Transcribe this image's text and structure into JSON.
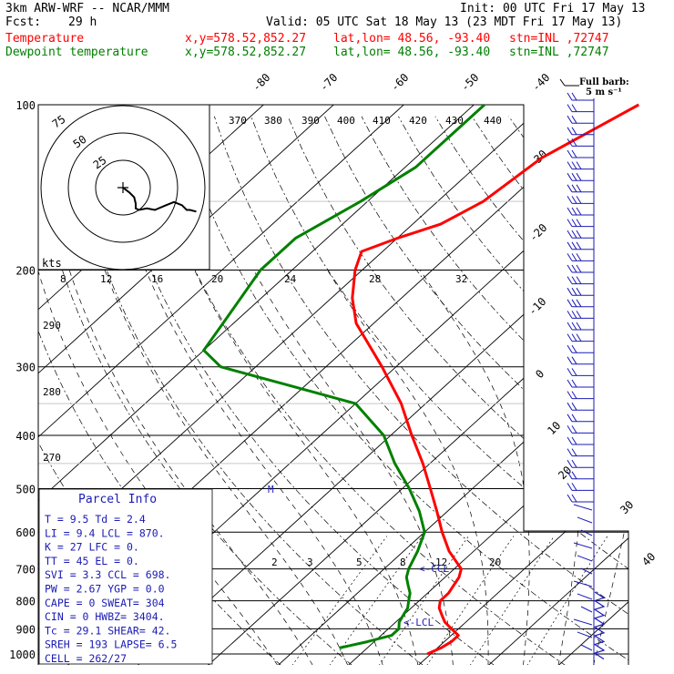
{
  "header": {
    "model": "3km ARW-WRF -- NCAR/MMM",
    "init": "Init: 00 UTC Fri 17 May 13",
    "fcst_label": "Fcst:",
    "fcst_value": "29 h",
    "valid": "Valid: 05 UTC Sat 18 May 13 (23 MDT Fri 17 May 13)",
    "temp_label": "Temperature",
    "dew_label": "Dewpoint temperature",
    "xy": "x,y=578.52,852.27",
    "latlon": "lat,lon= 48.56, -93.40",
    "stn": "stn=INL ,72747"
  },
  "legend": {
    "fullbarb_line1": "Full barb:",
    "fullbarb_line2": "5 m s⁻¹"
  },
  "parcel": {
    "title": "Parcel Info",
    "rows": [
      "T  =    9.5  Td =   2.4",
      "LI =    9.4  LCL =  870.",
      "K  =     27  LFC =    0.",
      "TT =     45  EL  =    0.",
      "SVI =   3.3  CCL =  698.",
      "PW =   2.67  YGP =   0.0",
      "CAPE =    0  SWEAT=  304",
      "CIN =     0  HWBZ= 3404.",
      "Tc =   29.1  SHEAR=  42.",
      "SREH =  193  LAPSE=  6.5",
      "CELL = 262/27"
    ]
  },
  "labels": {
    "kts": "kts",
    "m_marker": "M",
    "ccl_marker": "<-CCL",
    "lcl_marker": "<-LCL"
  },
  "hodograph": {
    "ring_labels": [
      "75",
      "50",
      "25"
    ],
    "speed_ticks": [
      "8",
      "12",
      "16",
      "20",
      "24",
      "28",
      "32"
    ]
  },
  "chart_data": {
    "type": "line",
    "title": "",
    "xlabel": "",
    "ylabel": "",
    "ylim": [
      1000,
      100
    ],
    "yscale": "log",
    "pressure_ticks": [
      100,
      200,
      300,
      400,
      500,
      600,
      700,
      800,
      900,
      1000
    ],
    "pressure_labels": [
      "100",
      "200",
      "300",
      "400",
      "500",
      "600",
      "700",
      "800",
      "900",
      "1000"
    ],
    "isotherm_labels_top": [
      "-80",
      "-70",
      "-60",
      "-50",
      "-40"
    ],
    "isotherm_labels_right": [
      "-30",
      "-20",
      "-10",
      "0",
      "10",
      "20",
      "30",
      "40"
    ],
    "theta_labels": [
      "370",
      "380",
      "390",
      "400",
      "410",
      "420",
      "430",
      "440",
      "290",
      "280",
      "270"
    ],
    "mixing_ratio_labels": [
      "2",
      "3",
      "5",
      "8",
      "12",
      "20"
    ],
    "series": [
      {
        "name": "Temperature",
        "color": "#ff0000",
        "p": [
          1000,
          975,
          950,
          925,
          900,
          875,
          850,
          825,
          800,
          775,
          750,
          725,
          700,
          650,
          600,
          550,
          500,
          450,
          400,
          350,
          300,
          250,
          225,
          200,
          185,
          175,
          165,
          150,
          125,
          100
        ],
        "t": [
          9.5,
          10.5,
          11.0,
          11.0,
          9.0,
          7.0,
          5.5,
          4.0,
          3.0,
          3.0,
          2.5,
          2.0,
          1.0,
          -3.5,
          -7.5,
          -11.5,
          -16.0,
          -21.0,
          -27.0,
          -33.5,
          -42.0,
          -52.5,
          -57.0,
          -61.0,
          -63.0,
          -60.0,
          -56.0,
          -53.5,
          -52.0,
          -46.5
        ]
      },
      {
        "name": "Dewpoint temperature",
        "color": "#008000",
        "p": [
          975,
          950,
          925,
          900,
          875,
          850,
          825,
          800,
          775,
          750,
          725,
          700,
          650,
          600,
          550,
          500,
          450,
          400,
          350,
          325,
          300,
          280,
          250,
          200,
          175,
          150,
          130,
          100
        ],
        "d": [
          -4.0,
          -1.0,
          1.5,
          1.5,
          0.5,
          0.0,
          -0.5,
          -1.5,
          -2.5,
          -4.0,
          -5.5,
          -6.5,
          -8.0,
          -10.0,
          -14.0,
          -19.0,
          -25.0,
          -31.0,
          -40.0,
          -52.0,
          -65.0,
          -70.0,
          -71.5,
          -74.5,
          -74.5,
          -71.0,
          -68.5,
          -68.5
        ]
      }
    ],
    "hodograph": {
      "u_kts": [
        0,
        4,
        7,
        8,
        8,
        10,
        15,
        20,
        27,
        32,
        37,
        40,
        42,
        46
      ],
      "v_kts": [
        0,
        -3,
        -6,
        -10,
        -13,
        -14,
        -13,
        -14,
        -11,
        -9,
        -11,
        -14,
        -14,
        -15
      ]
    }
  }
}
